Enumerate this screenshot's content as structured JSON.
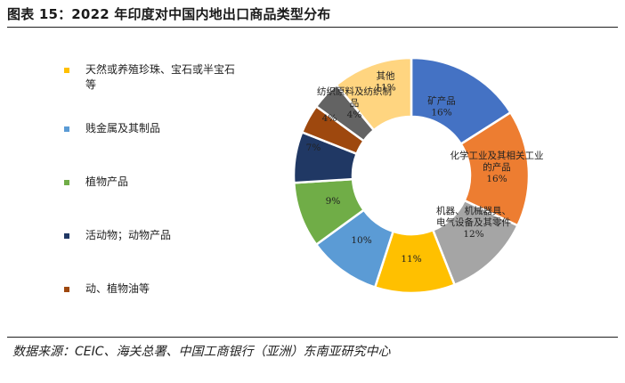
{
  "header": {
    "title": "图表 15：2022 年印度对中国内地出口商品类型分布"
  },
  "footer": {
    "source": "数据来源：CEIC、海关总署、中国工商银行（亚洲）东南亚研究中心"
  },
  "chart_data": {
    "type": "pie",
    "donut": true,
    "title": "",
    "legend_position": "left",
    "legend": [
      {
        "name": "天然或养殖珍珠、宝石或半宝石等",
        "color": "#FFC000"
      },
      {
        "name": "贱金属及其制品",
        "color": "#5B9BD5"
      },
      {
        "name": "植物产品",
        "color": "#70AD47"
      },
      {
        "name": "活动物；动物产品",
        "color": "#203864"
      },
      {
        "name": "动、植物油等",
        "color": "#9E480E"
      }
    ],
    "slices": [
      {
        "name": "矿产品",
        "label_lines": [
          "矿产品",
          "16%"
        ],
        "value": 16,
        "color": "#4472C4"
      },
      {
        "name": "化学工业及其相关工业的产品",
        "label_lines": [
          "化学工业及其相关工业",
          "的产品",
          "16%"
        ],
        "value": 16,
        "color": "#ED7D31"
      },
      {
        "name": "机器、机械器具、电气设备及其零件",
        "label_lines": [
          "机器、机械器具、",
          "电气设备及其零件",
          "12%"
        ],
        "value": 12,
        "color": "#A5A5A5"
      },
      {
        "name": "天然或养殖珍珠、宝石或半宝石等",
        "label_lines": [
          "11%"
        ],
        "value": 11,
        "color": "#FFC000"
      },
      {
        "name": "贱金属及其制品",
        "label_lines": [
          "10%"
        ],
        "value": 10,
        "color": "#5B9BD5"
      },
      {
        "name": "植物产品",
        "label_lines": [
          "9%"
        ],
        "value": 9,
        "color": "#70AD47"
      },
      {
        "name": "活动物；动物产品",
        "label_lines": [
          "7%"
        ],
        "value": 7,
        "color": "#203864"
      },
      {
        "name": "动、植物油等",
        "label_lines": [
          "4%"
        ],
        "value": 4,
        "color": "#9E480E"
      },
      {
        "name": "纺织原料及纺织制品",
        "label_lines": [
          "纺织原料及纺织制",
          "品",
          "4%"
        ],
        "value": 4,
        "color": "#636363"
      },
      {
        "name": "其他",
        "label_lines": [
          "其他",
          "11%"
        ],
        "value": 11,
        "color": "#FFD580"
      }
    ]
  }
}
